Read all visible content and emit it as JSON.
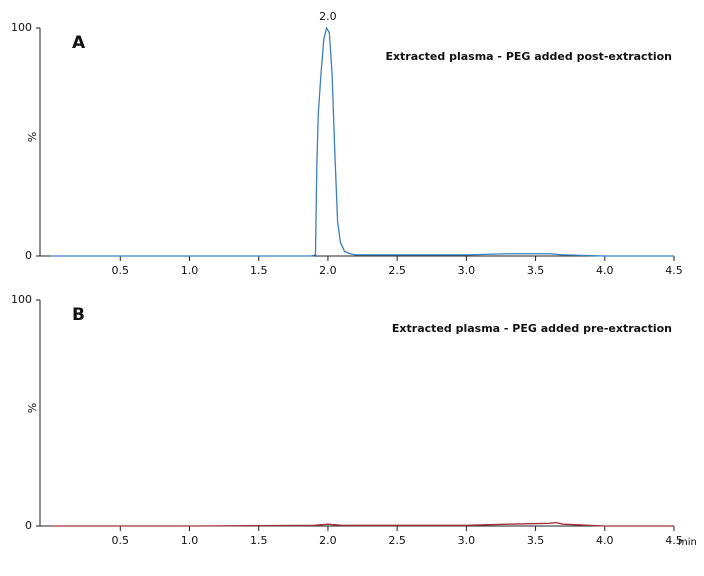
{
  "chart_data": [
    {
      "type": "line",
      "panel": "A",
      "subtitle": "Extracted plasma - PEG added post-extraction",
      "ylabel": "%",
      "x": [
        0,
        0.5,
        1.0,
        1.5,
        1.88,
        1.91,
        1.92,
        1.93,
        1.95,
        1.97,
        1.99,
        2.01,
        2.03,
        2.05,
        2.07,
        2.09,
        2.12,
        2.16,
        2.2,
        2.5,
        3.0,
        3.3,
        3.6,
        3.7,
        4.0,
        4.5
      ],
      "series": [
        {
          "color": "#3a7fc1",
          "values": [
            0,
            0,
            0,
            0,
            0,
            0.5,
            40,
            62,
            80,
            95,
            100,
            98,
            80,
            45,
            15,
            6,
            2,
            1,
            0.5,
            0.5,
            0.5,
            1,
            1,
            0.5,
            0,
            0
          ]
        }
      ],
      "annotations": [
        {
          "x": 2.0,
          "y": 100,
          "label": "2.0"
        }
      ],
      "xlim": [
        -0.08,
        4.5
      ],
      "ylim": [
        0,
        100
      ],
      "xticks": [
        0.5,
        {
          "value": 1.0,
          "label": "1.0"
        },
        1.5,
        {
          "value": 2.0,
          "label": "2.0"
        },
        2.5,
        {
          "value": 3.0,
          "label": "3.0"
        },
        3.5,
        {
          "value": 4.0,
          "label": "4.0"
        },
        4.5
      ],
      "yticks": [
        0,
        100
      ]
    },
    {
      "type": "line",
      "panel": "B",
      "subtitle": "Extracted plasma - PEG added pre-extraction",
      "ylabel": "%",
      "xlabel": "min",
      "x": [
        0,
        1.0,
        1.9,
        2.0,
        2.1,
        3.0,
        3.3,
        3.6,
        3.65,
        3.7,
        4.0,
        4.5
      ],
      "series": [
        {
          "color": "#a3303c",
          "values": [
            0,
            0,
            0.3,
            0.8,
            0.3,
            0.3,
            0.8,
            1.2,
            1.5,
            0.8,
            0,
            0
          ]
        }
      ],
      "xlim": [
        -0.08,
        4.5
      ],
      "ylim": [
        0,
        100
      ],
      "xticks": [
        0.5,
        {
          "value": 1.0,
          "label": "1.0"
        },
        1.5,
        {
          "value": 2.0,
          "label": "2.0"
        },
        2.5,
        {
          "value": 3.0,
          "label": "3.0"
        },
        3.5,
        {
          "value": 4.0,
          "label": "4.0"
        },
        4.5
      ],
      "yticks": [
        0,
        100
      ]
    }
  ]
}
